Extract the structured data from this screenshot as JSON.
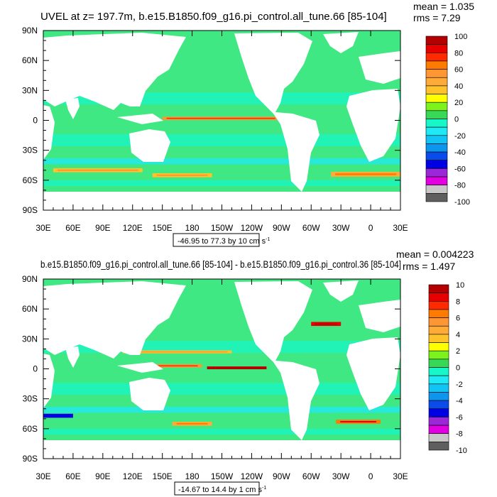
{
  "colors": {
    "ocean_base": "#3FE883",
    "palette_top": [
      "#5F5F5F",
      "#C8C8C8",
      "#E000E0",
      "#9B28D8",
      "#0000E5",
      "#0A4BEB",
      "#0D96EF",
      "#11C4F3",
      "#1FE9F5",
      "#18F7C7",
      "#36D855",
      "#7CF31B",
      "#FFFF00",
      "#FEC32A",
      "#FEAB39",
      "#FE9633",
      "#FF7A00",
      "#FF2A00",
      "#E60000",
      "#B40000"
    ]
  },
  "chart_data": [
    {
      "type": "heatmap",
      "title": "UVEL at z= 197.7m, b.e15.B1850.f09_g16.pi_control.all_tune.66 [85-104]",
      "stats": {
        "mean": "mean = 1.035",
        "rms": "rms = 7.29"
      },
      "x_ticks": [
        "30E",
        "60E",
        "90E",
        "120E",
        "150E",
        "180",
        "150W",
        "120W",
        "90W",
        "60W",
        "30W",
        "0",
        "30E"
      ],
      "y_ticks": [
        "90N",
        "60N",
        "30N",
        "0",
        "30S",
        "60S",
        "90S"
      ],
      "xlim": [
        30,
        390
      ],
      "ylim": [
        -90,
        90
      ],
      "colorbar_labels": [
        "100",
        "80",
        "60",
        "40",
        "20",
        "0",
        "-20",
        "-40",
        "-60",
        "-80",
        "-100"
      ],
      "colorbar_range": [
        -100,
        100
      ],
      "caption": {
        "prefix": "-46.95 to 77.3 by 10 cm s",
        "sup": "-1"
      },
      "bands": [
        {
          "lat": 2,
          "lon": [
            150,
            268
          ],
          "half_width": 1.6,
          "value": 55
        },
        {
          "lat": -50,
          "lon": [
            40,
            130
          ],
          "half_width": 2.0,
          "value": 35
        },
        {
          "lat": -55,
          "lon": [
            140,
            200
          ],
          "half_width": 2.0,
          "value": 30
        },
        {
          "lat": -54,
          "lon": [
            320,
            390
          ],
          "half_width": 2.5,
          "value": 40
        }
      ]
    },
    {
      "type": "heatmap",
      "title": "b.e15.B1850.f09_g16.pi_control.all_tune.66 [85-104] - b.e15.B1850.f09_g16.pi_control.36 [85-104]",
      "stats": {
        "mean": "mean = 0.004223",
        "rms": "rms = 1.497"
      },
      "x_ticks": [
        "30E",
        "60E",
        "90E",
        "120E",
        "150E",
        "180",
        "150W",
        "120W",
        "90W",
        "60W",
        "30W",
        "0",
        "30E"
      ],
      "y_ticks": [
        "90N",
        "60N",
        "30N",
        "0",
        "30S",
        "60S",
        "90S"
      ],
      "xlim": [
        30,
        390
      ],
      "ylim": [
        -90,
        90
      ],
      "colorbar_labels": [
        "10",
        "8",
        "6",
        "4",
        "2",
        "0",
        "-2",
        "-4",
        "-6",
        "-8",
        "-10"
      ],
      "colorbar_range": [
        -10,
        10
      ],
      "caption": {
        "prefix": "-14.67 to 14.4 by 1 cm s",
        "sup": "-1"
      },
      "bands": [
        {
          "lat": 1,
          "lon": [
            195,
            255
          ],
          "half_width": 1.4,
          "value": 9
        },
        {
          "lat": 3,
          "lon": [
            130,
            190
          ],
          "half_width": 1.6,
          "value": 5
        },
        {
          "lat": 17,
          "lon": [
            110,
            220
          ],
          "half_width": 1.5,
          "value": 3
        },
        {
          "lat": 45,
          "lon": [
            300,
            330
          ],
          "half_width": 2.0,
          "value": 8
        },
        {
          "lat": -47,
          "lon": [
            30,
            60
          ],
          "half_width": 2.0,
          "value": -6
        },
        {
          "lat": -55,
          "lon": [
            160,
            200
          ],
          "half_width": 2.0,
          "value": 4
        },
        {
          "lat": -53,
          "lon": [
            325,
            370
          ],
          "half_width": 2.0,
          "value": 6
        }
      ]
    }
  ]
}
